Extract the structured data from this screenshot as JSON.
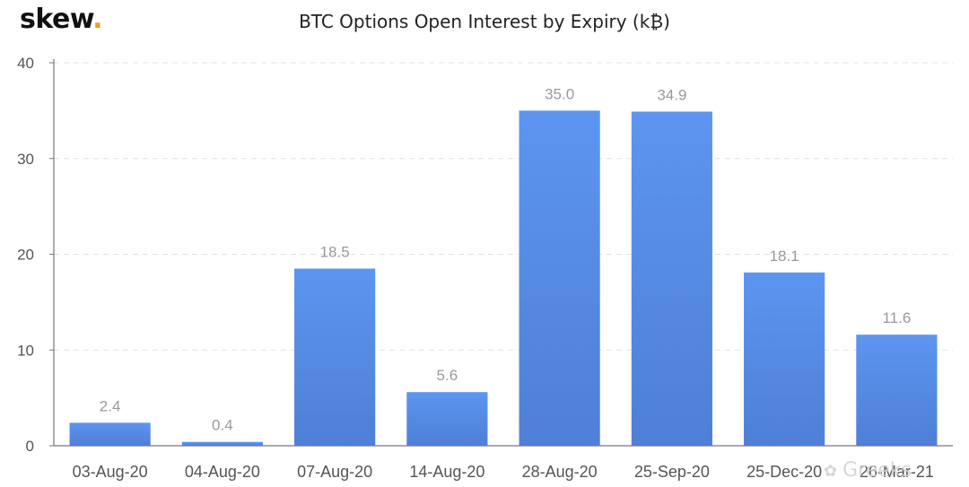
{
  "brand": {
    "name": "skew",
    "dot": "."
  },
  "watermark": {
    "icon": "wechat-icon",
    "text": "Greeks"
  },
  "chart_data": {
    "type": "bar",
    "title": "BTC Options Open Interest by Expiry (k₿)",
    "xlabel": "",
    "ylabel": "",
    "categories": [
      "03-Aug-20",
      "04-Aug-20",
      "07-Aug-20",
      "14-Aug-20",
      "28-Aug-20",
      "25-Sep-20",
      "25-Dec-20",
      "26-Mar-21"
    ],
    "values": [
      2.4,
      0.4,
      18.5,
      5.6,
      35.0,
      34.9,
      18.1,
      11.6
    ],
    "data_labels": [
      "2.4",
      "0.4",
      "18.5",
      "5.6",
      "35.0",
      "34.9",
      "18.1",
      "11.6"
    ],
    "ylim": [
      0,
      40
    ],
    "yticks": [
      0,
      10,
      20,
      30,
      40
    ],
    "grid": true,
    "colors": {
      "bar_top": "#5c95f0",
      "bar_bottom": "#4f7fd6",
      "grid": "#e2e2e2",
      "tick_text": "#555555",
      "label_text": "#9a9a9a"
    }
  }
}
